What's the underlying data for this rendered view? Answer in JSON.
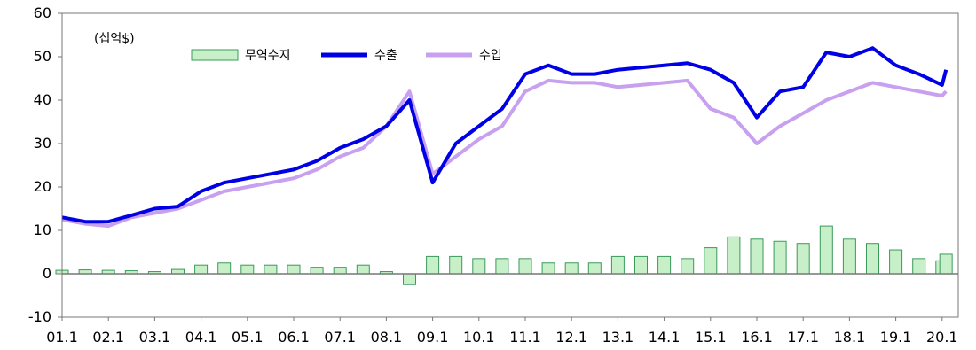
{
  "chart_data": {
    "type": "bar+line",
    "unit_label": "(십억$)",
    "ylim": [
      -10,
      60
    ],
    "yticks": [
      -10,
      0,
      10,
      20,
      30,
      40,
      50,
      60
    ],
    "xticks": [
      "01.1",
      "02.1",
      "03.1",
      "04.1",
      "05.1",
      "06.1",
      "07.1",
      "08.1",
      "09.1",
      "10.1",
      "11.1",
      "12.1",
      "13.1",
      "14.1",
      "15.1",
      "16.1",
      "17.1",
      "18.1",
      "19.1",
      "20.1"
    ],
    "legend": {
      "position": "top",
      "items": [
        "무역수지",
        "수출",
        "수입"
      ]
    },
    "colors": {
      "balance_fill": "#c8f0c8",
      "balance_stroke": "#3a9a5a",
      "balance_dark": "#2e8b57",
      "exports": "#0000e6",
      "imports": "#c8a0f0",
      "axis": "#777777"
    },
    "series": [
      {
        "name": "수출",
        "kind": "line",
        "points": [
          [
            "01.1",
            13
          ],
          [
            "01.7",
            12
          ],
          [
            "02.1",
            12
          ],
          [
            "02.7",
            13.5
          ],
          [
            "03.1",
            15
          ],
          [
            "03.7",
            15.5
          ],
          [
            "04.1",
            19
          ],
          [
            "04.7",
            21
          ],
          [
            "05.1",
            22
          ],
          [
            "05.7",
            23
          ],
          [
            "06.1",
            24
          ],
          [
            "06.7",
            26
          ],
          [
            "07.1",
            29
          ],
          [
            "07.7",
            31
          ],
          [
            "08.1",
            34
          ],
          [
            "08.7",
            40
          ],
          [
            "09.1",
            21
          ],
          [
            "09.7",
            30
          ],
          [
            "10.1",
            34
          ],
          [
            "10.7",
            38
          ],
          [
            "11.1",
            46
          ],
          [
            "11.7",
            48
          ],
          [
            "12.1",
            46
          ],
          [
            "12.7",
            46
          ],
          [
            "13.1",
            47
          ],
          [
            "13.7",
            47.5
          ],
          [
            "14.1",
            48
          ],
          [
            "14.7",
            48.5
          ],
          [
            "15.1",
            47
          ],
          [
            "15.7",
            44
          ],
          [
            "16.1",
            36
          ],
          [
            "16.7",
            42
          ],
          [
            "17.1",
            43
          ],
          [
            "17.7",
            51
          ],
          [
            "18.1",
            50
          ],
          [
            "18.7",
            52
          ],
          [
            "19.1",
            48
          ],
          [
            "19.7",
            46
          ],
          [
            "20.1",
            43.5
          ],
          [
            "20.2",
            47
          ]
        ]
      },
      {
        "name": "수입",
        "kind": "line",
        "points": [
          [
            "01.1",
            12.5
          ],
          [
            "01.7",
            11.5
          ],
          [
            "02.1",
            11
          ],
          [
            "02.7",
            13
          ],
          [
            "03.1",
            14
          ],
          [
            "03.7",
            15
          ],
          [
            "04.1",
            17
          ],
          [
            "04.7",
            19
          ],
          [
            "05.1",
            20
          ],
          [
            "05.7",
            21
          ],
          [
            "06.1",
            22
          ],
          [
            "06.7",
            24
          ],
          [
            "07.1",
            27
          ],
          [
            "07.7",
            29
          ],
          [
            "08.1",
            34
          ],
          [
            "08.7",
            42
          ],
          [
            "09.1",
            23
          ],
          [
            "09.7",
            27
          ],
          [
            "10.1",
            31
          ],
          [
            "10.7",
            34
          ],
          [
            "11.1",
            42
          ],
          [
            "11.7",
            44.5
          ],
          [
            "12.1",
            44
          ],
          [
            "12.7",
            44
          ],
          [
            "13.1",
            43
          ],
          [
            "13.7",
            43.5
          ],
          [
            "14.1",
            44
          ],
          [
            "14.7",
            44.5
          ],
          [
            "15.1",
            38
          ],
          [
            "15.7",
            36
          ],
          [
            "16.1",
            30
          ],
          [
            "16.7",
            34
          ],
          [
            "17.1",
            37
          ],
          [
            "17.7",
            40
          ],
          [
            "18.1",
            42
          ],
          [
            "18.7",
            44
          ],
          [
            "19.1",
            43
          ],
          [
            "19.7",
            42
          ],
          [
            "20.1",
            41
          ],
          [
            "20.2",
            42
          ]
        ]
      },
      {
        "name": "무역수지",
        "kind": "bar",
        "points": [
          [
            "01.1",
            0.8
          ],
          [
            "01.7",
            0.9
          ],
          [
            "02.1",
            0.8
          ],
          [
            "02.7",
            0.7
          ],
          [
            "03.1",
            0.5
          ],
          [
            "03.7",
            1.0
          ],
          [
            "04.1",
            2.0
          ],
          [
            "04.7",
            2.5
          ],
          [
            "05.1",
            2.0
          ],
          [
            "05.7",
            2.0
          ],
          [
            "06.1",
            2.0
          ],
          [
            "06.7",
            1.5
          ],
          [
            "07.1",
            1.5
          ],
          [
            "07.7",
            2.0
          ],
          [
            "08.1",
            0.5
          ],
          [
            "08.7",
            -2.5
          ],
          [
            "09.1",
            4.0
          ],
          [
            "09.7",
            4.0
          ],
          [
            "10.1",
            3.5
          ],
          [
            "10.7",
            3.5
          ],
          [
            "11.1",
            3.5
          ],
          [
            "11.7",
            2.5
          ],
          [
            "12.1",
            2.5
          ],
          [
            "12.7",
            2.5
          ],
          [
            "13.1",
            4.0
          ],
          [
            "13.7",
            4.0
          ],
          [
            "14.1",
            4.0
          ],
          [
            "14.7",
            3.5
          ],
          [
            "15.1",
            6.0
          ],
          [
            "15.7",
            8.5
          ],
          [
            "16.1",
            8.0
          ],
          [
            "16.7",
            7.5
          ],
          [
            "17.1",
            7.0
          ],
          [
            "17.7",
            11.0
          ],
          [
            "18.1",
            8.0
          ],
          [
            "18.7",
            7.0
          ],
          [
            "19.1",
            5.5
          ],
          [
            "19.7",
            3.5
          ],
          [
            "20.1",
            3.0
          ],
          [
            "20.2",
            4.5
          ]
        ]
      }
    ]
  }
}
